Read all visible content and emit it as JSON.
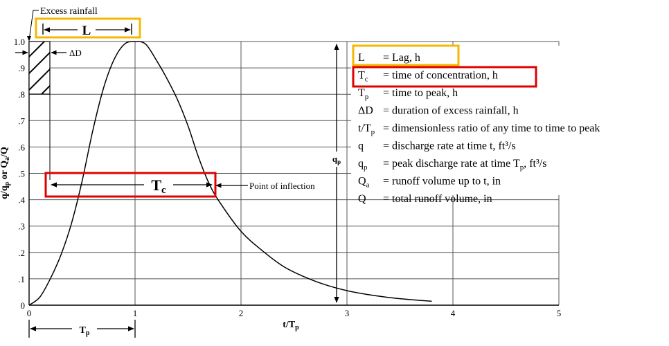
{
  "chart_data": {
    "type": "line",
    "title": "",
    "xlabel": "t/Tp",
    "ylabel": "q/qp or Qa/Q",
    "xlim": [
      0,
      5
    ],
    "ylim": [
      0,
      1.0
    ],
    "grid": true,
    "x_ticks": [
      "0",
      "1",
      "2",
      "3",
      "4",
      "5"
    ],
    "y_ticks": [
      "0",
      ".1",
      ".2",
      ".3",
      ".4",
      ".5",
      ".6",
      ".7",
      ".8",
      ".9",
      "1.0"
    ],
    "series": [
      {
        "name": "",
        "x": [
          0,
          0.1,
          0.2,
          0.3,
          0.4,
          0.5,
          0.6,
          0.7,
          0.8,
          0.9,
          1.0,
          1.1,
          1.2,
          1.3,
          1.4,
          1.5,
          1.6,
          1.7,
          1.8,
          2.0,
          2.2,
          2.4,
          2.6,
          2.8,
          3.0,
          3.2,
          3.4,
          3.6,
          3.8
        ],
        "y": [
          0,
          0.03,
          0.1,
          0.19,
          0.31,
          0.47,
          0.66,
          0.82,
          0.93,
          0.99,
          1.0,
          0.99,
          0.93,
          0.86,
          0.78,
          0.68,
          0.56,
          0.46,
          0.39,
          0.28,
          0.207,
          0.147,
          0.107,
          0.077,
          0.055,
          0.04,
          0.029,
          0.021,
          0.015
        ]
      }
    ],
    "annotations": {
      "excess_rainfall": "Excess rainfall",
      "lag": "L",
      "delta_d": "ΔD",
      "tc": "Tc",
      "point_of_inflection": "Point of inflection",
      "qp": "qp",
      "tp": "Tp"
    }
  },
  "legend": {
    "items": [
      {
        "sym": "L",
        "sub": "",
        "def": "= Lag, h"
      },
      {
        "sym": "T",
        "sub": "c",
        "def": "= time of concentration, h"
      },
      {
        "sym": "T",
        "sub": "p",
        "def": "= time to peak, h"
      },
      {
        "sym": "ΔD",
        "sub": "",
        "def": "= duration of excess rainfall, h"
      },
      {
        "sym": "t/T",
        "sub": "p",
        "def": "= dimensionless ratio of any time to time to peak"
      },
      {
        "sym": "q",
        "sub": "",
        "def": "= discharge rate at time t, ft³/s"
      },
      {
        "sym": "q",
        "sub": "p",
        "def": "= peak discharge rate at time T",
        "def_sub": "p",
        "def_tail": ", ft³/s"
      },
      {
        "sym": "Q",
        "sub": "a",
        "def": "= runoff volume up to t, in"
      },
      {
        "sym": "Q",
        "sub": "",
        "def": "= total runoff volume, in"
      }
    ]
  },
  "highlight_colors": {
    "yellow": "#f5b800",
    "red": "#e00000"
  }
}
